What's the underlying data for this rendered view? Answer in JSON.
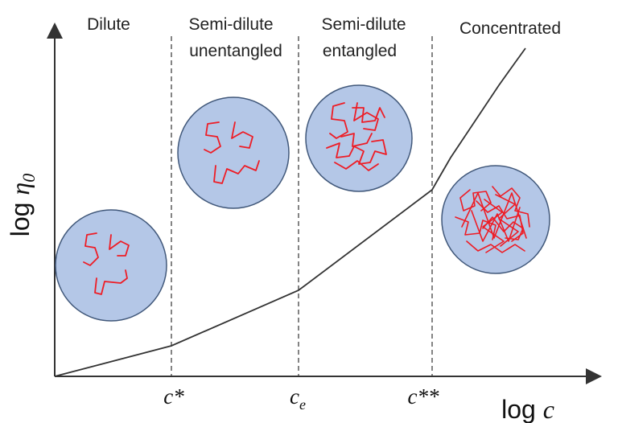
{
  "regions": [
    {
      "lines": [
        "Dilute"
      ]
    },
    {
      "lines": [
        "Semi-dilute",
        "unentangled"
      ]
    },
    {
      "lines": [
        "Semi-dilute",
        "entangled"
      ]
    },
    {
      "lines": [
        "Concentrated"
      ]
    }
  ],
  "thresholds": [
    {
      "base": "c",
      "suffix": "*"
    },
    {
      "base": "c",
      "sub": "e"
    },
    {
      "base": "c",
      "suffix": "**"
    }
  ],
  "axes": {
    "x_title": {
      "prefix": "log ",
      "var": "c"
    },
    "y_title": {
      "prefix": "log ",
      "var": "η",
      "sub": "0"
    }
  },
  "colors": {
    "blob_fill": "#b4c7e7",
    "blob_stroke": "#41587a",
    "chain": "#ee1c25",
    "line": "#333333"
  }
}
